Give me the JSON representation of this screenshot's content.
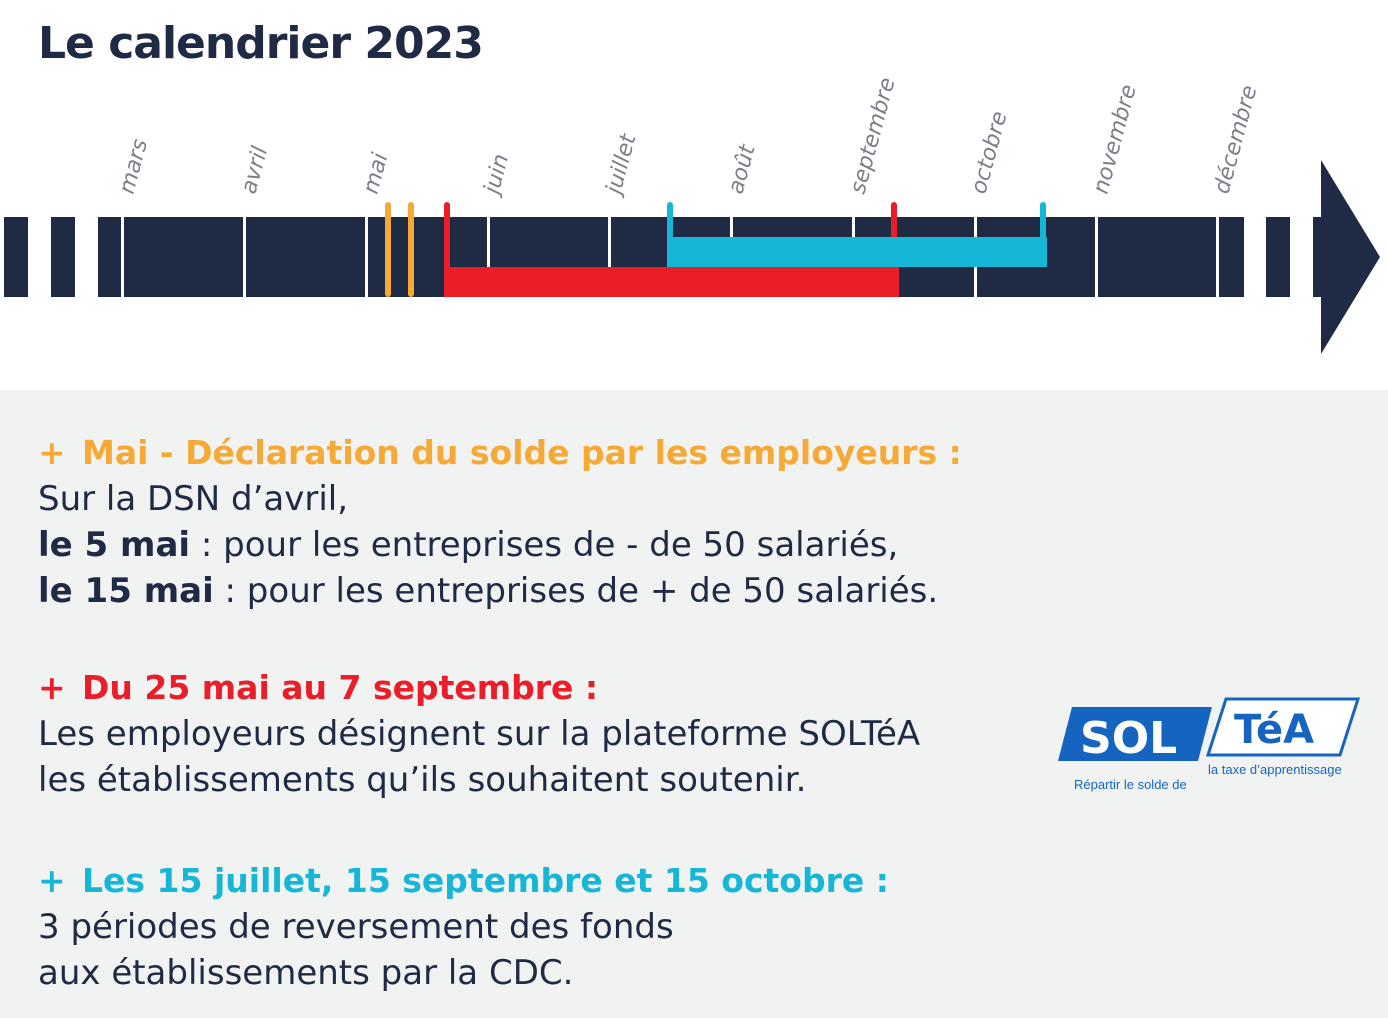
{
  "title": "Le calendrier 2023",
  "colors": {
    "navy": "#1f2a44",
    "orange": "#f6a935",
    "red": "#e91e29",
    "cyan": "#16b7d6",
    "logo_blue": "#1565c0"
  },
  "timeline": {
    "months": [
      "mars",
      "avril",
      "mai",
      "juin",
      "juillet",
      "août",
      "septembre",
      "octobre",
      "novembre",
      "décembre"
    ]
  },
  "sections": [
    {
      "plus": "+",
      "heading": "Mai - Déclaration du solde par les employeurs :",
      "line1": "Sur la DSN d’avril,",
      "line2_bold": "le 5 mai",
      "line2_rest": " : pour les entreprises de - de 50 salariés,",
      "line3_bold": "le 15 mai",
      "line3_rest": " : pour les entreprises de + de 50 salariés."
    },
    {
      "plus": "+",
      "heading": "Du 25 mai au 7 septembre :",
      "line1": "Les employeurs désignent sur la plateforme SOLTéA",
      "line2": "les établissements qu’ils souhaitent soutenir."
    },
    {
      "plus": "+",
      "heading": "Les 15 juillet, 15 septembre et 15 octobre :",
      "line1": "3 périodes de reversement des fonds",
      "line2": "aux établissements par la CDC."
    }
  ],
  "logo": {
    "left_text": "SOL",
    "right_text": "TéA",
    "caption_left": "Répartir le solde de",
    "caption_right": "la taxe d’apprentissage"
  }
}
